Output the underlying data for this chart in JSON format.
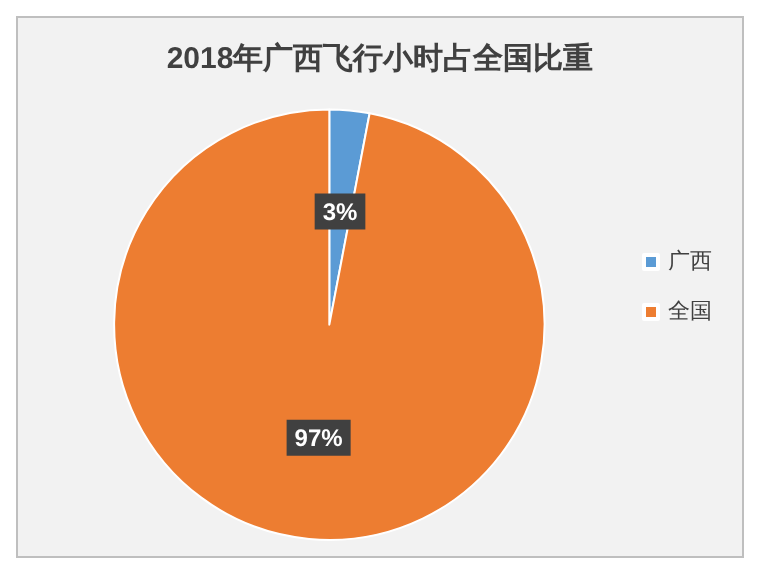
{
  "chart_data": {
    "type": "pie",
    "title": "2018年广西飞行小时占全国比重",
    "categories": [
      "广西",
      "全国"
    ],
    "values": [
      3,
      97
    ],
    "colors": [
      "#5b9bd5",
      "#ed7d31"
    ],
    "value_labels": [
      "3%",
      "97%"
    ],
    "legend": "right"
  }
}
